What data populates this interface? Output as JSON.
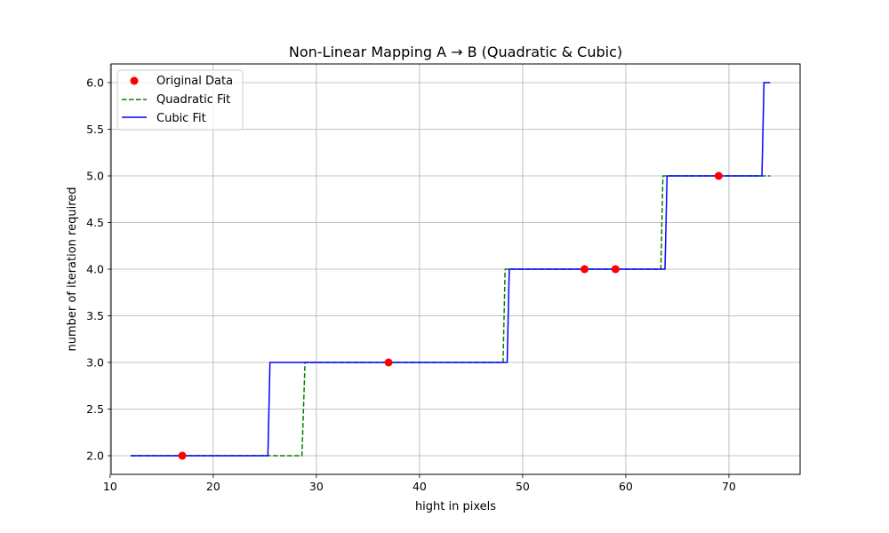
{
  "chart_data": {
    "type": "line",
    "title": "Non-Linear Mapping A → B (Quadratic & Cubic)",
    "xlabel": "hight in pixels",
    "ylabel": "number of iteration required",
    "xlim": [
      10.1,
      76.9
    ],
    "ylim": [
      1.8,
      6.2
    ],
    "xticks": [
      10,
      20,
      30,
      40,
      50,
      60,
      70
    ],
    "yticks": [
      2.0,
      2.5,
      3.0,
      3.5,
      4.0,
      4.5,
      5.0,
      5.5,
      6.0
    ],
    "xtick_labels": [
      "10",
      "20",
      "30",
      "40",
      "50",
      "60",
      "70"
    ],
    "ytick_labels": [
      "2.0",
      "2.5",
      "3.0",
      "3.5",
      "4.0",
      "4.5",
      "5.0",
      "5.5",
      "6.0"
    ],
    "grid": true,
    "legend_position": "top-left",
    "series": [
      {
        "name": "Original Data",
        "kind": "scatter",
        "color": "#ff0000",
        "points": [
          [
            17,
            2
          ],
          [
            37,
            3
          ],
          [
            56,
            4
          ],
          [
            59,
            4
          ],
          [
            69,
            5
          ]
        ]
      },
      {
        "name": "Quadratic Fit",
        "kind": "line",
        "style": "dashed",
        "color": "#008000",
        "points": [
          [
            12,
            2
          ],
          [
            28.6,
            2
          ],
          [
            28.9,
            3
          ],
          [
            48.1,
            3
          ],
          [
            48.3,
            4
          ],
          [
            63.4,
            4
          ],
          [
            63.6,
            5
          ],
          [
            74,
            5
          ]
        ]
      },
      {
        "name": "Cubic Fit",
        "kind": "line",
        "style": "solid",
        "color": "#0000ff",
        "points": [
          [
            12,
            2
          ],
          [
            25.3,
            2
          ],
          [
            25.5,
            3
          ],
          [
            48.5,
            3
          ],
          [
            48.7,
            4
          ],
          [
            63.8,
            4
          ],
          [
            64.0,
            5
          ],
          [
            73.2,
            5
          ],
          [
            73.4,
            6
          ],
          [
            74,
            6
          ]
        ]
      }
    ]
  }
}
